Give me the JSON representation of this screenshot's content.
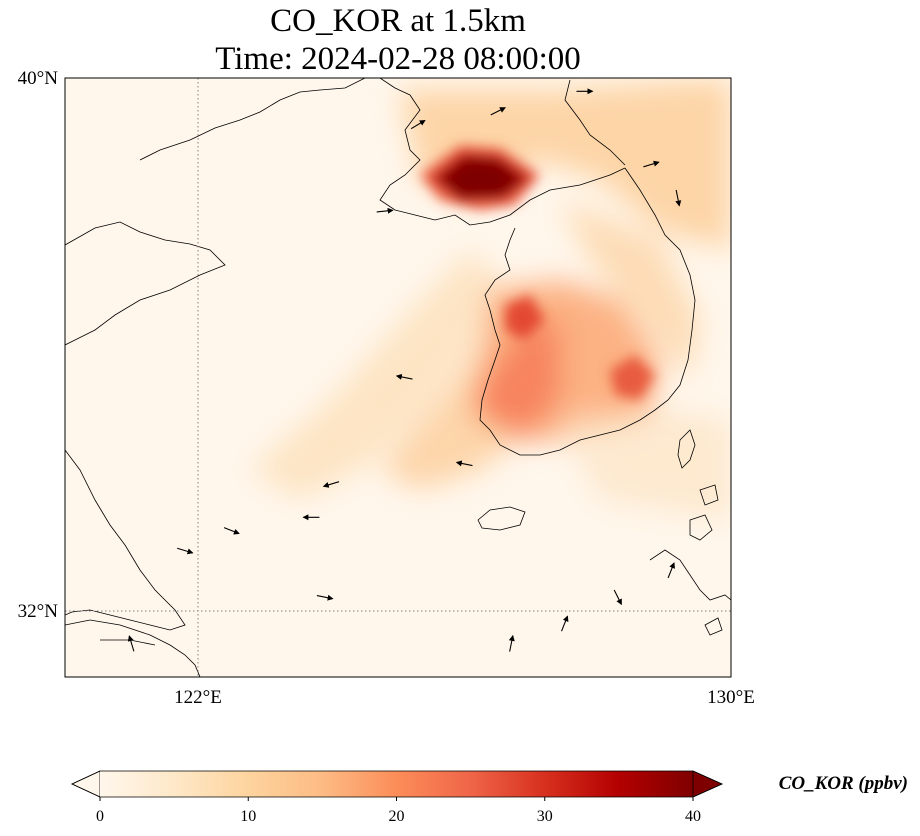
{
  "title": {
    "line1": "CO_KOR at 1.5km",
    "line2": "Time: 2024-02-28 08:00:00"
  },
  "map": {
    "extent": {
      "lon_min": 120.0,
      "lon_max": 130.0,
      "lat_min": 31.0,
      "lat_max": 40.0
    },
    "projection": "PlateCarree",
    "gridlines": {
      "style": "dotted",
      "color": "#808080",
      "lons": [
        122
      ],
      "lats": [
        32
      ]
    },
    "lon_ticks": [
      {
        "value": 122,
        "label": "122°E"
      },
      {
        "value": 130,
        "label": "130°E"
      }
    ],
    "lat_ticks": [
      {
        "value": 40,
        "label": "40°N"
      },
      {
        "value": 32,
        "label": "32°N"
      }
    ],
    "coastline_color": "#000000",
    "field": {
      "variable": "CO_KOR",
      "colormap": "OrRd",
      "vmin": 0,
      "vmax": 40,
      "hotspots_note_free": true
    }
  },
  "colorbar": {
    "label": "CO_KOR (ppbv)",
    "ticks": [
      {
        "value": 0,
        "label": "0"
      },
      {
        "value": 10,
        "label": "10"
      },
      {
        "value": 20,
        "label": "20"
      },
      {
        "value": 30,
        "label": "30"
      },
      {
        "value": 40,
        "label": "40"
      }
    ],
    "extend": "both",
    "colors": [
      "#fff7ec",
      "#fee8c8",
      "#fdd49e",
      "#fdbb84",
      "#fc8d59",
      "#ef6548",
      "#d7301f",
      "#b30000",
      "#7f0000"
    ]
  },
  "chart_data": {
    "type": "heatmap",
    "title": "CO_KOR at 1.5km / Time: 2024-02-28 08:00:00",
    "xlabel": "",
    "ylabel": "",
    "xlim": [
      120,
      130
    ],
    "ylim": [
      31,
      40
    ],
    "value_range": [
      0,
      40
    ],
    "units": "ppbv",
    "hotspots": [
      {
        "lon": 125.8,
        "lat": 38.9,
        "value": 40
      },
      {
        "lon": 126.8,
        "lat": 35.8,
        "value": 25
      },
      {
        "lon": 127.9,
        "lat": 34.7,
        "value": 22
      },
      {
        "lon": 126.6,
        "lat": 37.3,
        "value": 28
      }
    ],
    "wind_vectors": [
      {
        "lon": 127.8,
        "lat": 39.8,
        "u": 1,
        "v": 0
      },
      {
        "lon": 126.5,
        "lat": 39.5,
        "u": 1,
        "v": 0.5
      },
      {
        "lon": 125.3,
        "lat": 39.3,
        "u": 1,
        "v": 0.6
      },
      {
        "lon": 128.8,
        "lat": 38.7,
        "u": 1,
        "v": 0.3
      },
      {
        "lon": 129.2,
        "lat": 38.2,
        "u": 0.2,
        "v": -1
      },
      {
        "lon": 124.8,
        "lat": 38.0,
        "u": 1,
        "v": 0.1
      },
      {
        "lon": 125.1,
        "lat": 35.5,
        "u": -1,
        "v": 0.2
      },
      {
        "lon": 126.0,
        "lat": 34.2,
        "u": -1,
        "v": 0.2
      },
      {
        "lon": 124.0,
        "lat": 33.9,
        "u": -1,
        "v": -0.3
      },
      {
        "lon": 123.7,
        "lat": 33.4,
        "u": -1,
        "v": 0
      },
      {
        "lon": 122.5,
        "lat": 33.2,
        "u": 1,
        "v": -0.4
      },
      {
        "lon": 121.8,
        "lat": 32.9,
        "u": 1,
        "v": -0.3
      },
      {
        "lon": 123.9,
        "lat": 32.2,
        "u": 1,
        "v": -0.2
      },
      {
        "lon": 121.0,
        "lat": 31.5,
        "u": -0.3,
        "v": 1
      },
      {
        "lon": 126.7,
        "lat": 31.5,
        "u": 0.2,
        "v": 1
      },
      {
        "lon": 127.5,
        "lat": 31.8,
        "u": 0.4,
        "v": 1
      },
      {
        "lon": 128.3,
        "lat": 32.2,
        "u": 0.5,
        "v": -1
      },
      {
        "lon": 129.1,
        "lat": 32.6,
        "u": 0.4,
        "v": 1
      }
    ]
  }
}
